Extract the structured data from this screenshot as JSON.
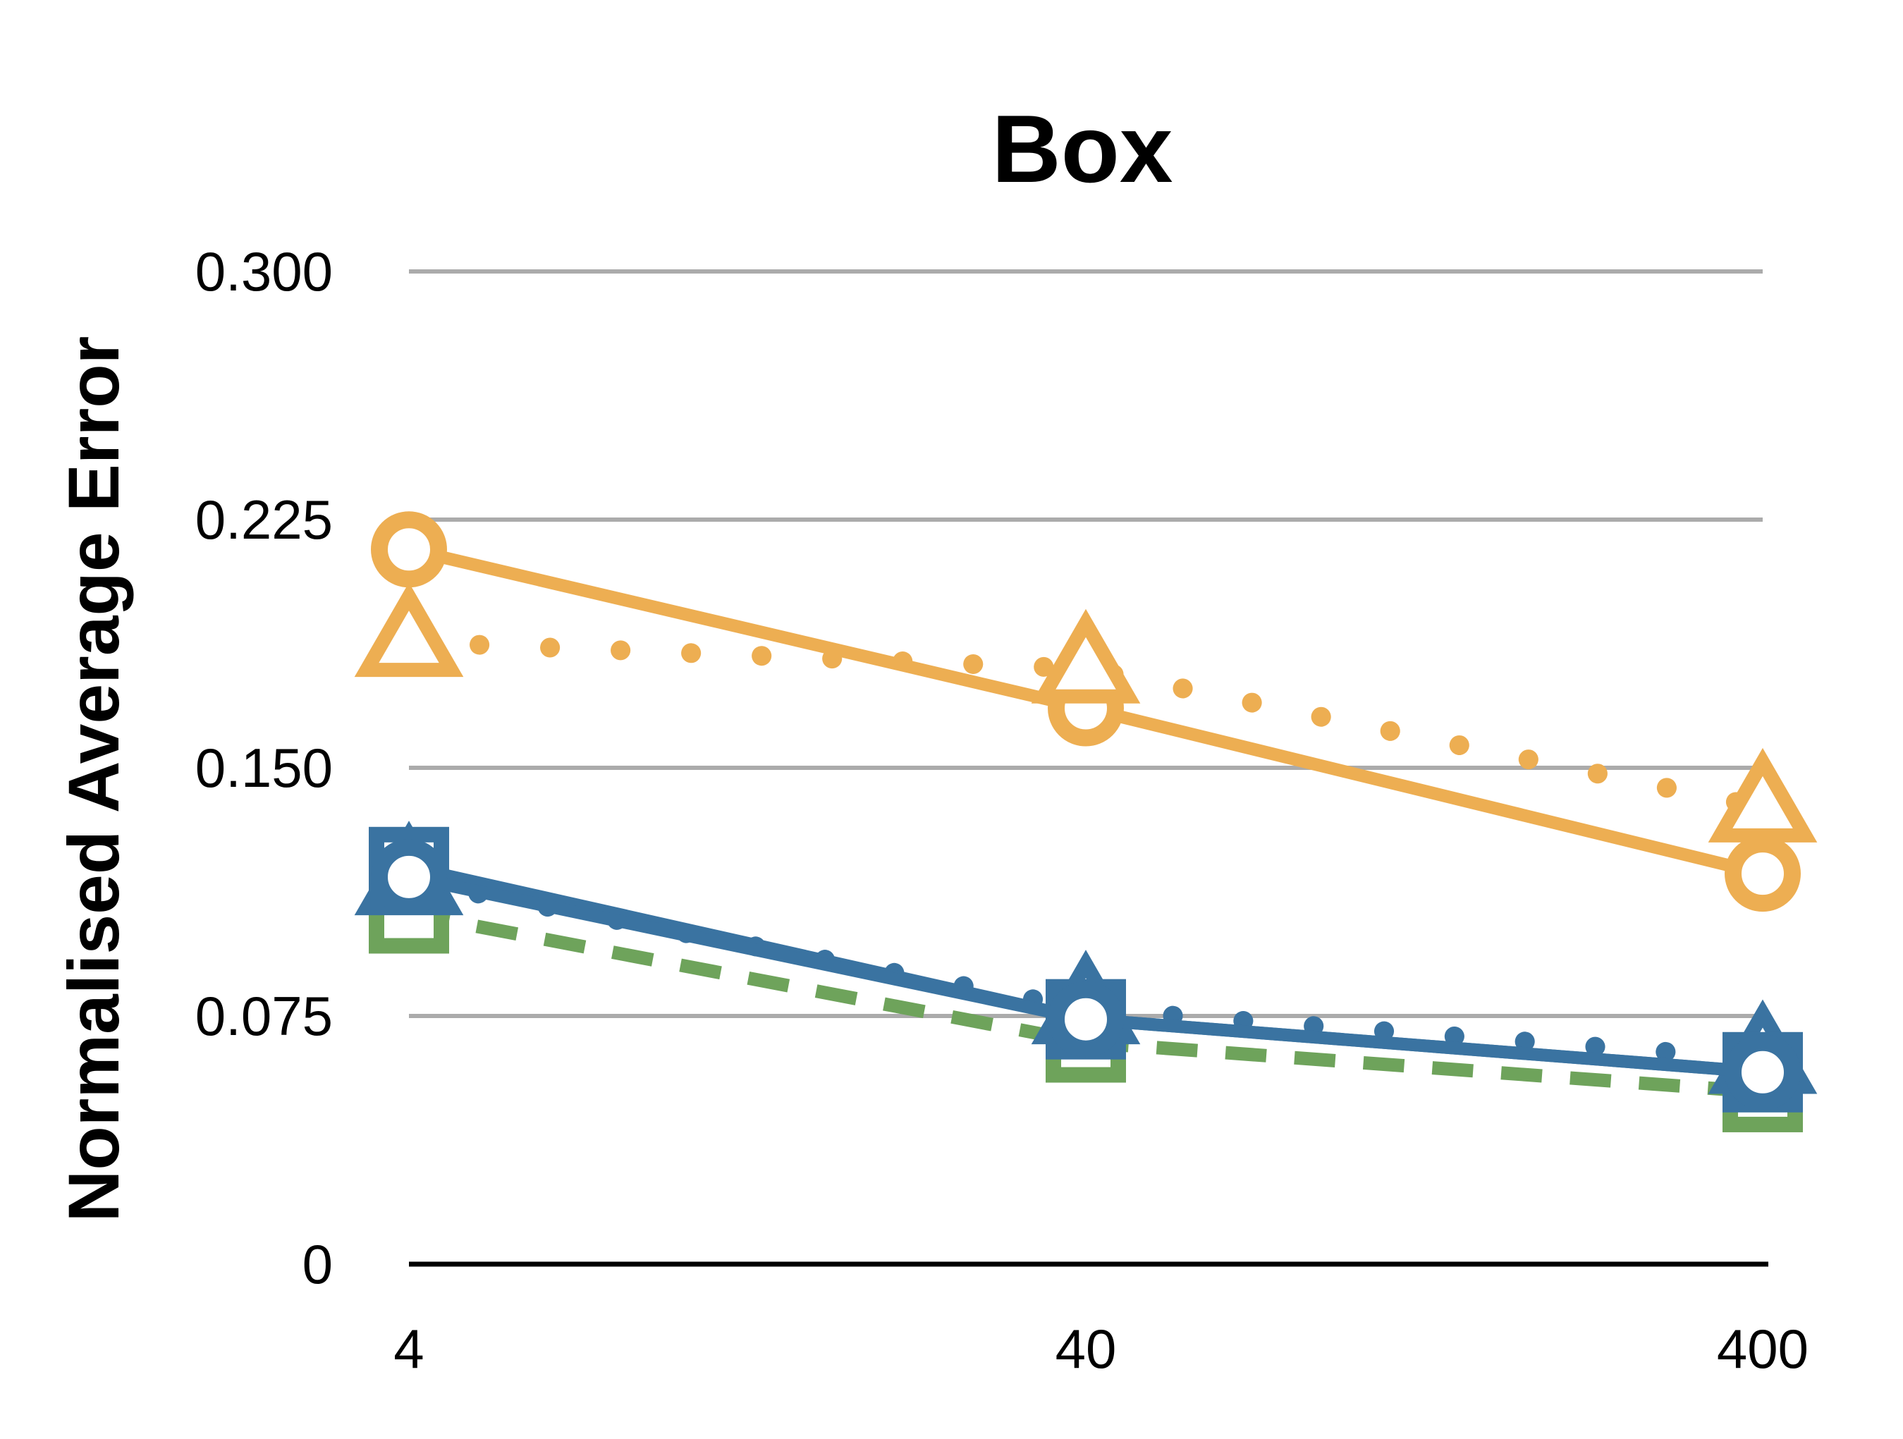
{
  "chart_data": {
    "type": "line",
    "title": "Box",
    "xlabel": "",
    "ylabel": "Normalised Average Error",
    "x_scale": "log",
    "categories": [
      "4",
      "40",
      "400"
    ],
    "x": [
      4,
      40,
      400
    ],
    "ylim": [
      0,
      0.3
    ],
    "yticks": [
      0,
      0.075,
      0.15,
      0.225,
      0.3
    ],
    "ytick_labels": [
      "0",
      "0.075",
      "0.150",
      "0.225",
      "0.300"
    ],
    "grid": true,
    "legend": "none",
    "series": [
      {
        "color": "#EDAE52",
        "line": "solid",
        "marker": "circle",
        "values": [
          0.216,
          0.168,
          0.118
        ]
      },
      {
        "color": "#EDAE52",
        "line": "dotted",
        "marker": "triangle",
        "values": [
          0.188,
          0.18,
          0.138
        ]
      },
      {
        "color": "#6EA35B",
        "line": "dashed",
        "marker": "square",
        "values": [
          0.106,
          0.067,
          0.052
        ]
      },
      {
        "color": "#3A73A1",
        "line": "dotted",
        "marker": "triangle",
        "values": [
          0.116,
          0.077,
          0.062
        ]
      },
      {
        "color": "#3A73A1",
        "line": "solid",
        "marker": "square",
        "values": [
          0.12,
          0.074,
          0.058
        ]
      },
      {
        "color": "#3A73A1",
        "line": "solid",
        "marker": "circle",
        "values": [
          0.117,
          0.074,
          0.058
        ]
      }
    ]
  }
}
